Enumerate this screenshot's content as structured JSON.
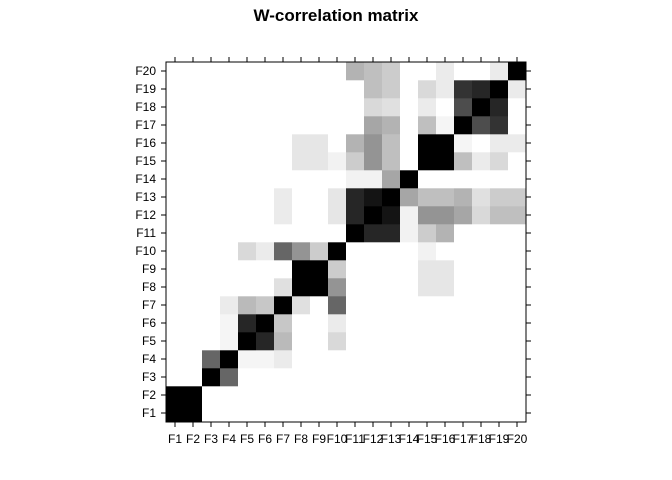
{
  "chart_data": {
    "type": "heatmap",
    "title": "W-correlation matrix",
    "labels": [
      "F1",
      "F2",
      "F3",
      "F4",
      "F5",
      "F6",
      "F7",
      "F8",
      "F9",
      "F10",
      "F11",
      "F12",
      "F13",
      "F14",
      "F15",
      "F16",
      "F17",
      "F18",
      "F19",
      "F20"
    ],
    "value_range": [
      0,
      1
    ],
    "color_scale": {
      "low": "#ffffff",
      "high": "#000000"
    },
    "grid": true,
    "values": [
      [
        1,
        1,
        0,
        0,
        0,
        0,
        0,
        0,
        0,
        0,
        0,
        0,
        0,
        0,
        0,
        0,
        0,
        0,
        0,
        0
      ],
      [
        1,
        1,
        0,
        0,
        0,
        0,
        0,
        0,
        0,
        0,
        0,
        0,
        0,
        0,
        0,
        0,
        0,
        0,
        0,
        0
      ],
      [
        0,
        0,
        1,
        0.6,
        0,
        0,
        0,
        0,
        0,
        0,
        0,
        0,
        0,
        0,
        0,
        0,
        0,
        0,
        0,
        0
      ],
      [
        0,
        0,
        0.6,
        1,
        0.04,
        0.04,
        0.08,
        0,
        0,
        0,
        0,
        0,
        0,
        0,
        0,
        0,
        0,
        0,
        0,
        0
      ],
      [
        0,
        0,
        0,
        0.04,
        1,
        0.85,
        0.27,
        0,
        0,
        0.15,
        0,
        0,
        0,
        0,
        0,
        0,
        0,
        0,
        0,
        0
      ],
      [
        0,
        0,
        0,
        0.04,
        0.85,
        1,
        0.22,
        0,
        0,
        0.08,
        0,
        0,
        0,
        0,
        0,
        0,
        0,
        0,
        0,
        0
      ],
      [
        0,
        0,
        0,
        0.08,
        0.27,
        0.22,
        1,
        0.12,
        0,
        0.6,
        0,
        0.08,
        0.08,
        0,
        0,
        0,
        0,
        0,
        0,
        0
      ],
      [
        0,
        0,
        0,
        0,
        0,
        0,
        0.12,
        1,
        1,
        0.42,
        0,
        0,
        0,
        0,
        0.1,
        0.1,
        0,
        0,
        0,
        0
      ],
      [
        0,
        0,
        0,
        0,
        0,
        0,
        0,
        1,
        1,
        0.2,
        0,
        0,
        0,
        0,
        0.1,
        0.1,
        0,
        0,
        0,
        0
      ],
      [
        0,
        0,
        0,
        0,
        0.15,
        0.08,
        0.6,
        0.42,
        0.2,
        1,
        0,
        0.1,
        0.1,
        0,
        0.05,
        0,
        0,
        0,
        0,
        0
      ],
      [
        0,
        0,
        0,
        0,
        0,
        0,
        0,
        0,
        0,
        0,
        1,
        0.85,
        0.85,
        0.05,
        0.2,
        0.3,
        0,
        0,
        0,
        0.3
      ],
      [
        0,
        0,
        0,
        0,
        0,
        0,
        0,
        0,
        0,
        0,
        0.85,
        1,
        0.92,
        0.05,
        0.42,
        0.42,
        0.35,
        0.15,
        0.25,
        0.25
      ],
      [
        0,
        0,
        0,
        0,
        0,
        0,
        0,
        0,
        0,
        0,
        0.85,
        0.92,
        1,
        0.35,
        0.25,
        0.25,
        0.3,
        0.12,
        0.2,
        0.2
      ],
      [
        0,
        0,
        0,
        0,
        0,
        0,
        0,
        0,
        0,
        0,
        0.05,
        0.05,
        0.35,
        1,
        0,
        0,
        0,
        0,
        0,
        0
      ],
      [
        0,
        0,
        0,
        0,
        0,
        0,
        0,
        0.1,
        0.1,
        0.05,
        0.2,
        0.42,
        0.25,
        0,
        1,
        1,
        0.25,
        0.08,
        0.15,
        0
      ],
      [
        0,
        0,
        0,
        0,
        0,
        0,
        0,
        0.1,
        0.1,
        0,
        0.3,
        0.42,
        0.25,
        0,
        1,
        1,
        0.04,
        0,
        0.08,
        0.08
      ],
      [
        0,
        0,
        0,
        0,
        0,
        0,
        0,
        0,
        0,
        0,
        0,
        0.35,
        0.3,
        0,
        0.25,
        0.04,
        1,
        0.7,
        0.8,
        0
      ],
      [
        0,
        0,
        0,
        0,
        0,
        0,
        0,
        0,
        0,
        0,
        0,
        0.15,
        0.12,
        0,
        0.08,
        0,
        0.7,
        1,
        0.85,
        0
      ],
      [
        0,
        0,
        0,
        0,
        0,
        0,
        0,
        0,
        0,
        0,
        0,
        0.25,
        0.2,
        0,
        0.15,
        0.08,
        0.8,
        0.85,
        1,
        0.08
      ],
      [
        0,
        0,
        0,
        0,
        0,
        0,
        0,
        0,
        0,
        0,
        0,
        0.25,
        0.2,
        0,
        0,
        0.08,
        0,
        0,
        0.08,
        1
      ]
    ]
  }
}
